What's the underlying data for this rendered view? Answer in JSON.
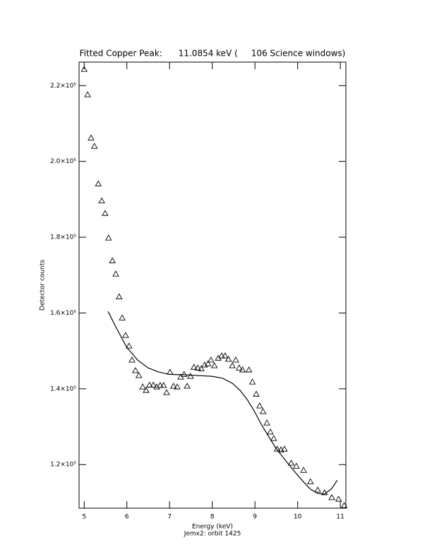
{
  "chart_data": {
    "type": "scatter",
    "title": "Fitted Copper Peak:      11.0854 keV (     106 Science windows)",
    "x_label": "Energy (keV)",
    "subcaption": "Jemx2: orbit 1425",
    "y_label": "Detector counts",
    "xlim": [
      4.88,
      11.13
    ],
    "xticks": [
      5,
      6,
      7,
      8,
      9,
      10,
      11
    ],
    "ylim": [
      108500,
      226200
    ],
    "yticks": [
      {
        "value": 120000,
        "label": "1.2×10⁵"
      },
      {
        "value": 140000,
        "label": "1.4×10⁵"
      },
      {
        "value": 160000,
        "label": "1.6×10⁵"
      },
      {
        "value": 180000,
        "label": "1.8×10⁵"
      },
      {
        "value": 200000,
        "label": "2.0×10⁵"
      },
      {
        "value": 220000,
        "label": "2.2×10⁵"
      }
    ],
    "grid": false,
    "series": [
      {
        "marker": "triangle",
        "color": "#000000",
        "x": [
          5.0,
          5.08,
          5.16,
          5.24,
          5.33,
          5.41,
          5.49,
          5.57,
          5.66,
          5.74,
          5.82,
          5.89,
          5.97,
          6.05,
          6.12,
          6.2,
          6.28,
          6.37,
          6.45,
          6.53,
          6.62,
          6.7,
          6.78,
          6.86,
          6.93,
          7.01,
          7.09,
          7.18,
          7.26,
          7.34,
          7.41,
          7.49,
          7.57,
          7.66,
          7.74,
          7.82,
          7.9,
          7.97,
          8.05,
          8.14,
          8.22,
          8.3,
          8.38,
          8.47,
          8.55,
          8.63,
          8.71,
          8.86,
          8.94,
          9.03,
          9.11,
          9.19,
          9.28,
          9.36,
          9.44,
          9.52,
          9.61,
          9.69,
          9.85,
          9.97,
          10.14,
          10.3,
          10.47,
          10.63,
          10.8,
          10.96,
          11.09
        ],
        "values": [
          224300,
          217600,
          206200,
          204000,
          194100,
          189600,
          186300,
          179800,
          173800,
          170300,
          164300,
          158700,
          154100,
          151300,
          147600,
          144800,
          143500,
          140500,
          139600,
          141000,
          141000,
          140500,
          140900,
          140900,
          139000,
          144400,
          140700,
          140500,
          143100,
          143800,
          140700,
          143300,
          145700,
          145500,
          145300,
          146300,
          146600,
          147600,
          146100,
          148100,
          148700,
          148700,
          147800,
          146100,
          147600,
          145500,
          145000,
          145000,
          141800,
          138600,
          135500,
          134000,
          131000,
          128600,
          126900,
          124100,
          123900,
          124100,
          120400,
          119600,
          118500,
          115500,
          113300,
          112600,
          111300,
          110900,
          109200
        ]
      },
      {
        "marker": "line",
        "color": "#000000",
        "x": [
          5.56,
          5.76,
          6.0,
          6.25,
          6.5,
          6.75,
          7.0,
          7.33,
          7.66,
          7.99,
          8.24,
          8.48,
          8.65,
          8.81,
          8.98,
          9.14,
          9.31,
          9.47,
          9.64,
          9.81,
          9.97,
          10.14,
          10.3,
          10.47,
          10.63,
          10.8,
          10.93
        ],
        "values": [
          160400,
          155900,
          150900,
          147600,
          145500,
          144400,
          143800,
          143700,
          143500,
          143300,
          142800,
          141400,
          139600,
          137300,
          134200,
          130800,
          127600,
          124700,
          122200,
          119800,
          117600,
          115400,
          113500,
          112400,
          112200,
          113700,
          115900
        ]
      }
    ]
  }
}
